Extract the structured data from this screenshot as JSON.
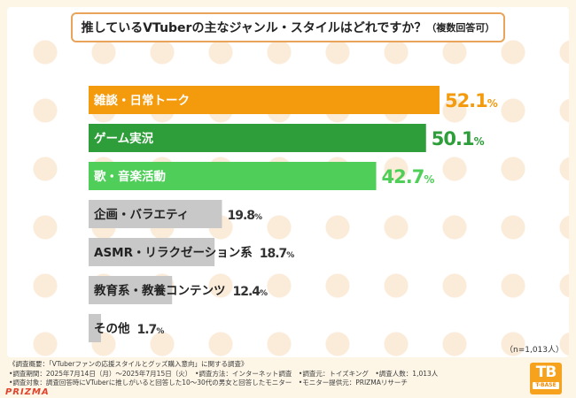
{
  "title": {
    "main": "推しているVTuberの主なジャンル・スタイルはどれですか？",
    "sub": "（複数回答可）"
  },
  "note": "（n=1,013人）",
  "footer": [
    "《調査概要：「VTuberファンの応援スタイルとグッズ購入意向」に関する調査》",
    "•調査期間：2025年7月14日（月）〜2025年7月15日（火）　•調査方法：インターネット調査　•調査元：トイズキング　•調査人数：1,013人",
    "•調査対象：調査回答時にVTuberに推しがいると回答した10〜30代の男女と回答したモニター　•モニター提供元：PRIZMAリサーチ"
  ],
  "logo": {
    "mark": "TB",
    "name": "T-BASE"
  },
  "watermark": "PRIZMA",
  "chart_data": {
    "type": "bar",
    "orientation": "horizontal",
    "categories": [
      "雑談・日常トーク",
      "ゲーム実況",
      "歌・音楽活動",
      "企画・バラエティ",
      "ASMR・リラクゼーション系",
      "教育系・教養コンテンツ",
      "その他"
    ],
    "values": [
      52.1,
      50.1,
      42.7,
      19.8,
      18.7,
      12.4,
      1.7
    ],
    "value_labels": [
      "52.1",
      "50.1",
      "42.7",
      "19.8",
      "18.7",
      "12.4",
      "1.7"
    ],
    "unit": "%",
    "bar_colors": [
      "#f39a0d",
      "#2e9e3a",
      "#4fcf59",
      "#c8c8c8",
      "#c8c8c8",
      "#c8c8c8",
      "#c8c8c8"
    ],
    "value_colors": [
      "#f39a0d",
      "#2e9e3a",
      "#4fcf59",
      "#333333",
      "#333333",
      "#333333",
      "#333333"
    ],
    "label_colors": [
      "#ffffff",
      "#ffffff",
      "#ffffff",
      "#222222",
      "#222222",
      "#222222",
      "#222222"
    ],
    "xlim": [
      0,
      100
    ],
    "grid": false
  }
}
